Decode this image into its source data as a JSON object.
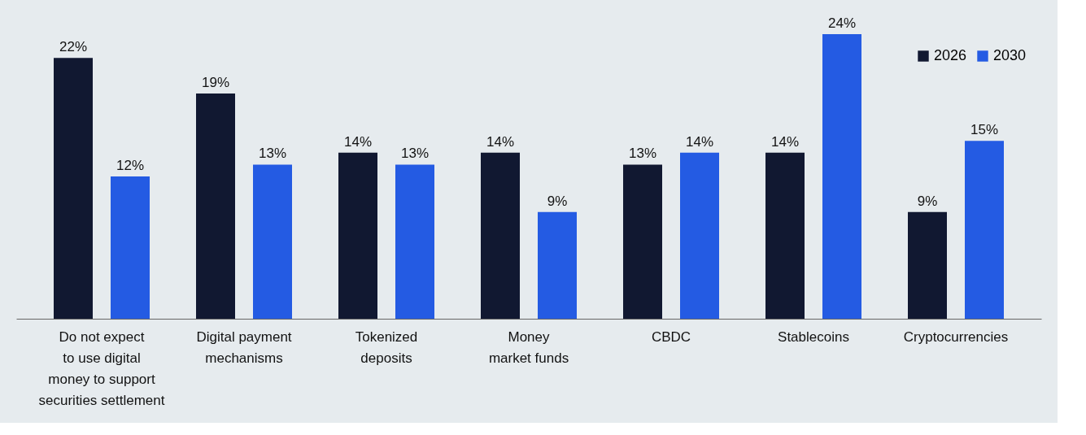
{
  "chart_data": {
    "type": "bar",
    "categories": [
      "Do not expect\nto use digital\nmoney to support\nsecurities settlement",
      "Digital payment\nmechanisms",
      "Tokenized\ndeposits",
      "Money\nmarket funds",
      "CBDC",
      "Stablecoins",
      "Cryptocurrencies"
    ],
    "series": [
      {
        "name": "2026",
        "color": "#111831",
        "values": [
          22,
          19,
          14,
          14,
          13,
          14,
          9
        ],
        "value_labels": [
          "22%",
          "19%",
          "14%",
          "14%",
          "13%",
          "14%",
          "9%"
        ]
      },
      {
        "name": "2030",
        "color": "#245be3",
        "values": [
          12,
          13,
          13,
          9,
          14,
          24,
          15
        ],
        "value_labels": [
          "12%",
          "13%",
          "13%",
          "9%",
          "14%",
          "24%",
          "15%"
        ]
      }
    ],
    "legend": "top right"
  }
}
